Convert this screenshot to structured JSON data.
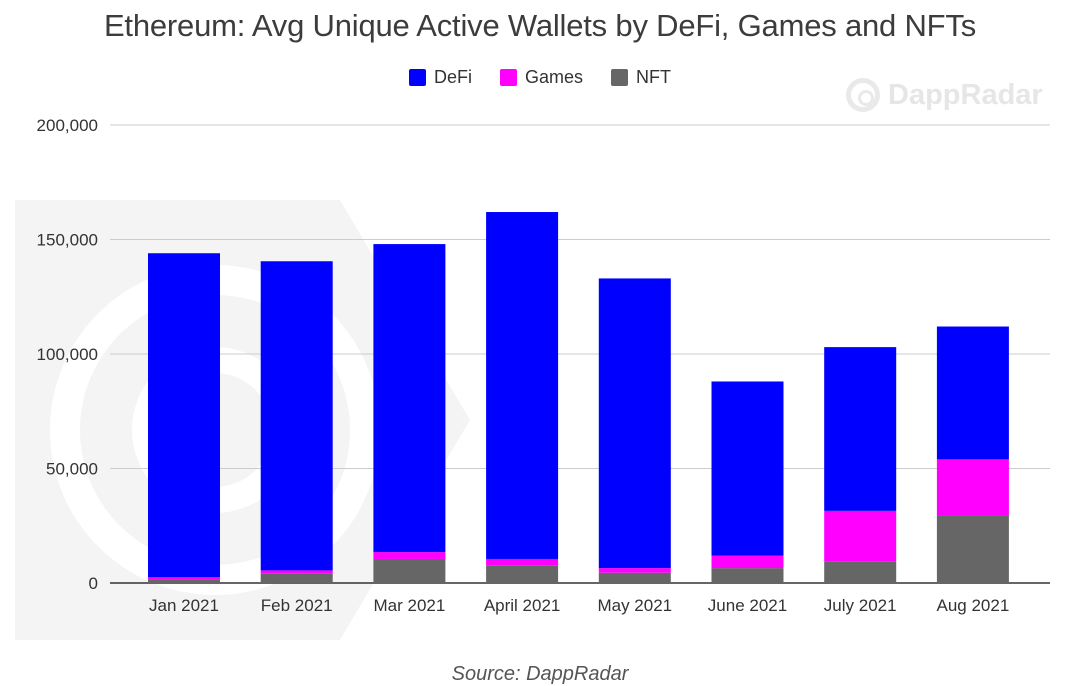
{
  "chart_data": {
    "type": "bar",
    "stacked": true,
    "title": "Ethereum: Avg Unique Active Wallets by DeFi, Games and NFTs",
    "categories": [
      "Jan 2021",
      "Feb 2021",
      "Mar 2021",
      "April 2021",
      "May 2021",
      "June 2021",
      "July 2021",
      "Aug 2021"
    ],
    "series": [
      {
        "name": "NFT",
        "color": "#666666",
        "values": [
          1500,
          4000,
          10500,
          7500,
          4500,
          6500,
          9500,
          29500
        ]
      },
      {
        "name": "Games",
        "color": "#ff00ff",
        "values": [
          1000,
          1500,
          3000,
          3000,
          2000,
          5500,
          22000,
          24500
        ]
      },
      {
        "name": "DeFi",
        "color": "#0000ff",
        "values": [
          141500,
          135000,
          134500,
          151500,
          126500,
          76000,
          71500,
          58000
        ]
      }
    ],
    "legend_order": [
      "DeFi",
      "Games",
      "NFT"
    ],
    "legend_position": "top",
    "ylim": [
      0,
      200000
    ],
    "yticks": [
      0,
      50000,
      100000,
      150000,
      200000
    ],
    "ytick_labels": [
      "0",
      "50,000",
      "100,000",
      "150,000",
      "200,000"
    ],
    "grid": true,
    "xlabel": "",
    "ylabel": ""
  },
  "watermark": {
    "text": "DappRadar"
  },
  "source": "Source: DappRadar"
}
